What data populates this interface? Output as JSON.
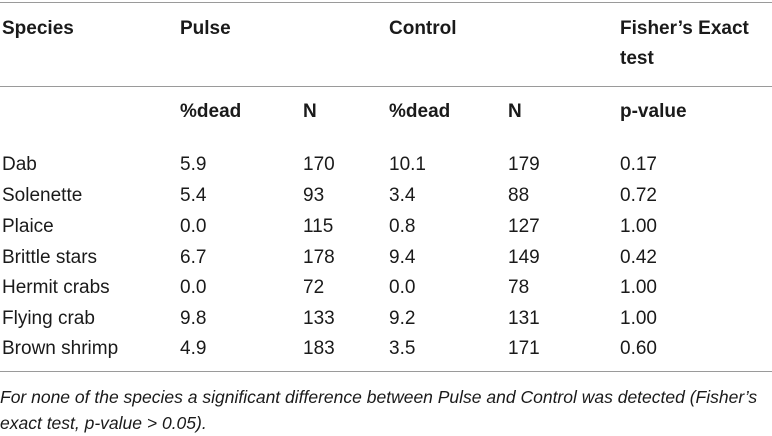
{
  "table": {
    "header_top": {
      "species": "Species",
      "pulse": "Pulse",
      "control": "Control",
      "fisher_line1": "Fisher’s Exact",
      "fisher_line2": "test"
    },
    "header_sub": {
      "pulse_dead": "%dead",
      "pulse_n": "N",
      "control_dead": "%dead",
      "control_n": "N",
      "pvalue": "p-value"
    },
    "rows": [
      {
        "species": "Dab",
        "pulse_dead": "5.9",
        "pulse_n": "170",
        "control_dead": "10.1",
        "control_n": "179",
        "p": "0.17"
      },
      {
        "species": "Solenette",
        "pulse_dead": "5.4",
        "pulse_n": "93",
        "control_dead": "3.4",
        "control_n": "88",
        "p": "0.72"
      },
      {
        "species": "Plaice",
        "pulse_dead": "0.0",
        "pulse_n": "115",
        "control_dead": "0.8",
        "control_n": "127",
        "p": "1.00"
      },
      {
        "species": "Brittle stars",
        "pulse_dead": "6.7",
        "pulse_n": "178",
        "control_dead": "9.4",
        "control_n": "149",
        "p": "0.42"
      },
      {
        "species": "Hermit crabs",
        "pulse_dead": "0.0",
        "pulse_n": "72",
        "control_dead": "0.0",
        "control_n": "78",
        "p": "1.00"
      },
      {
        "species": "Flying crab",
        "pulse_dead": "9.8",
        "pulse_n": "133",
        "control_dead": "9.2",
        "control_n": "131",
        "p": "1.00"
      },
      {
        "species": "Brown shrimp",
        "pulse_dead": "4.9",
        "pulse_n": "183",
        "control_dead": "3.5",
        "control_n": "171",
        "p": "0.60"
      }
    ]
  },
  "footnote": "For none of the species a significant difference between Pulse and Control was detected (Fisher’s exact test, p-value > 0.05)."
}
